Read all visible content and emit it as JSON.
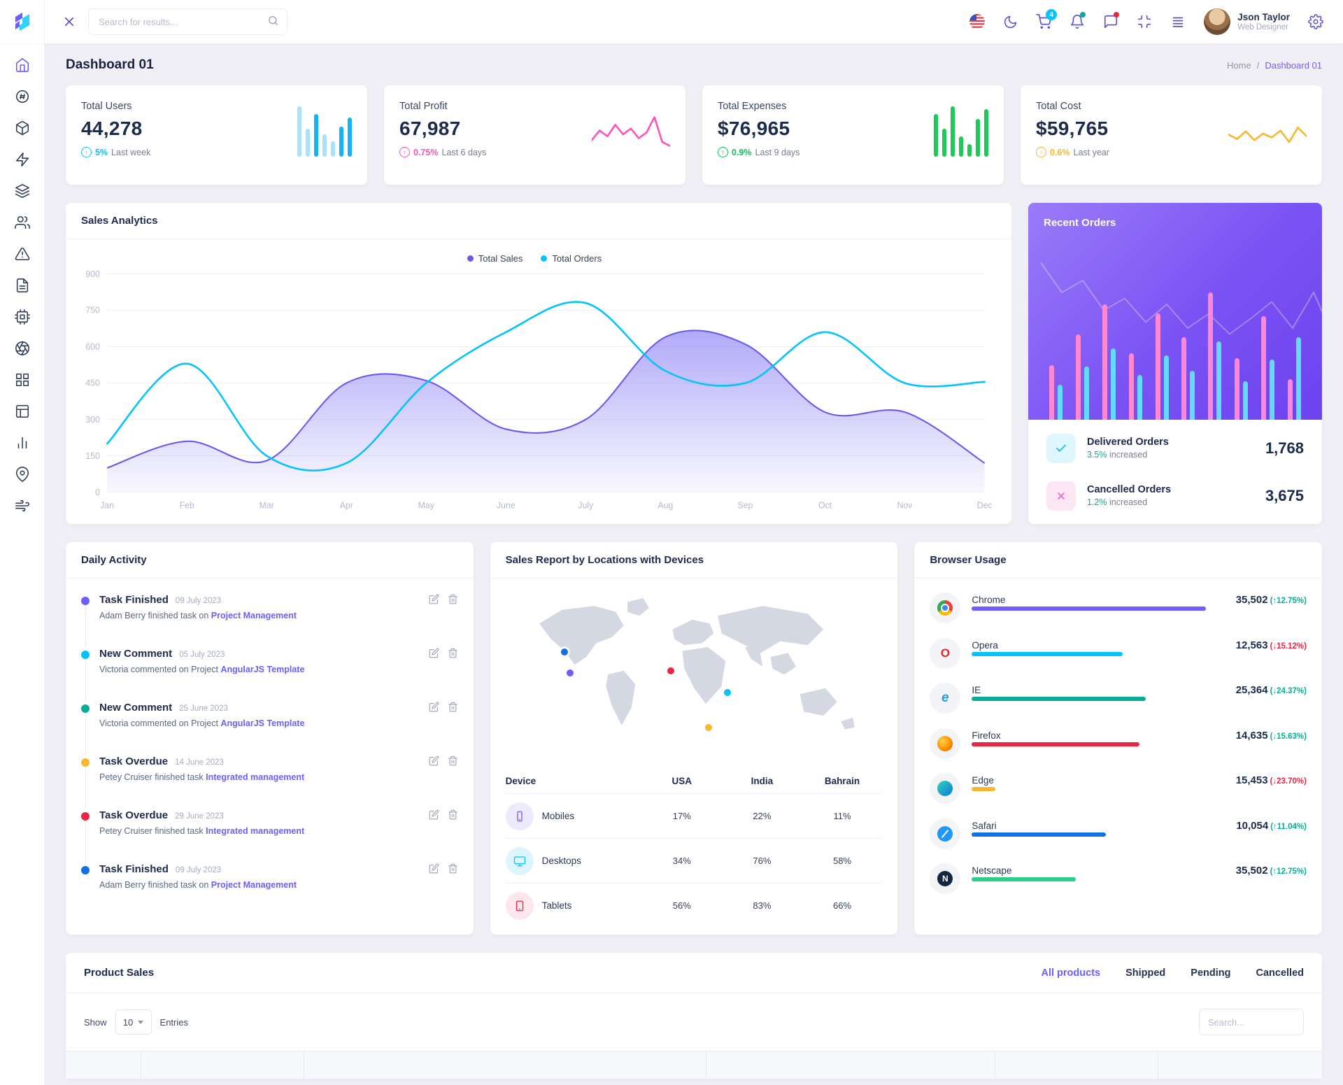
{
  "topbar": {
    "search_placeholder": "Search for results...",
    "cart_badge": "4",
    "user": {
      "name": "Json Taylor",
      "role": "Web Designer"
    }
  },
  "page": {
    "title": "Dashboard 01",
    "breadcrumb_home": "Home",
    "breadcrumb_sep": "/",
    "breadcrumb_current": "Dashboard 01"
  },
  "stats": [
    {
      "label": "Total Users",
      "value": "44,278",
      "delta": "5%",
      "period": "Last week",
      "color": "#05c3fb"
    },
    {
      "label": "Total Profit",
      "value": "67,987",
      "delta": "0.75%",
      "period": "Last 6 days",
      "color": "#fe53bb"
    },
    {
      "label": "Total Expenses",
      "value": "$76,965",
      "delta": "0.9%",
      "period": "Last 9 days",
      "color": "#0bc25d"
    },
    {
      "label": "Total Cost",
      "value": "$59,765",
      "delta": "0.6%",
      "period": "Last year",
      "color": "#f7b731"
    }
  ],
  "sales_analytics": {
    "title": "Sales Analytics"
  },
  "recent_orders": {
    "title": "Recent Orders",
    "items": [
      {
        "label": "Delivered Orders",
        "sub_pct": "3.5%",
        "sub_text": "increased",
        "value": "1,768"
      },
      {
        "label": "Cancelled Orders",
        "sub_pct": "1.2%",
        "sub_text": "increased",
        "value": "3,675"
      }
    ]
  },
  "daily_activity": {
    "title": "Daily Activity",
    "items": [
      {
        "title": "Task Finished",
        "date": "09 July 2023",
        "desc": "Adam Berry finished task on",
        "link": "Project Management",
        "color": "#6c5ffc"
      },
      {
        "title": "New Comment",
        "date": "05 July 2023",
        "desc": "Victoria commented on Project",
        "link": "AngularJS Template",
        "color": "#05c3fb"
      },
      {
        "title": "New Comment",
        "date": "25 June 2023",
        "desc": "Victoria commented on Project",
        "link": "AngularJS Template",
        "color": "#09ad95"
      },
      {
        "title": "Task Overdue",
        "date": "14 June 2023",
        "desc": "Petey Cruiser finished task",
        "link": "Integrated management",
        "color": "#f7b731"
      },
      {
        "title": "Task Overdue",
        "date": "29 June 2023",
        "desc": "Petey Cruiser finished task",
        "link": "Integrated management",
        "color": "#e82646"
      },
      {
        "title": "Task Finished",
        "date": "09 July 2023",
        "desc": "Adam Berry finished task on",
        "link": "Project Management",
        "color": "#1170e4"
      }
    ]
  },
  "sales_report": {
    "title": "Sales Report by Locations with Devices",
    "headers": [
      "Device",
      "USA",
      "India",
      "Bahrain"
    ],
    "rows": [
      {
        "device": "Mobiles",
        "usa": "17%",
        "india": "22%",
        "bahrain": "11%"
      },
      {
        "device": "Desktops",
        "usa": "34%",
        "india": "76%",
        "bahrain": "58%"
      },
      {
        "device": "Tablets",
        "usa": "56%",
        "india": "83%",
        "bahrain": "66%"
      }
    ],
    "map_points": [
      {
        "x": "15%",
        "y": "34%",
        "color": "#1170e4"
      },
      {
        "x": "16.5%",
        "y": "46%",
        "color": "#6c5ffc"
      },
      {
        "x": "43%",
        "y": "45%",
        "color": "#e82646"
      },
      {
        "x": "58%",
        "y": "57%",
        "color": "#05c3fb"
      },
      {
        "x": "53%",
        "y": "77%",
        "color": "#f7b731"
      }
    ]
  },
  "browser_usage": {
    "title": "Browser Usage",
    "rows": [
      {
        "name": "Chrome",
        "value": "35,502",
        "change": "(↑12.75%)",
        "change_color": "#09ad95",
        "bar_color": "#6c5ffc",
        "bar_pct": "70%"
      },
      {
        "name": "Opera",
        "value": "12,563",
        "change": "(↓15.12%)",
        "change_color": "#e82646",
        "bar_color": "#05c3fb",
        "bar_pct": "45%"
      },
      {
        "name": "IE",
        "value": "25,364",
        "change": "(↓24.37%)",
        "change_color": "#09ad95",
        "bar_color": "#09ad95",
        "bar_pct": "52%"
      },
      {
        "name": "Firefox",
        "value": "14,635",
        "change": "(↓15.63%)",
        "change_color": "#09ad95",
        "bar_color": "#e82646",
        "bar_pct": "50%"
      },
      {
        "name": "Edge",
        "value": "15,453",
        "change": "(↓23.70%)",
        "change_color": "#e82646",
        "bar_color": "#f7b731",
        "bar_pct": "7%"
      },
      {
        "name": "Safari",
        "value": "10,054",
        "change": "(↑11.04%)",
        "change_color": "#09ad95",
        "bar_color": "#1170e4",
        "bar_pct": "40%"
      },
      {
        "name": "Netscape",
        "value": "35,502",
        "change": "(↑12.75%)",
        "change_color": "#09ad95",
        "bar_color": "#2dce89",
        "bar_pct": "31%"
      }
    ]
  },
  "product_sales": {
    "title": "Product Sales",
    "tabs": [
      "All products",
      "Shipped",
      "Pending",
      "Cancelled"
    ],
    "active_tab": "All products",
    "show_label": "Show",
    "entries_value": "10",
    "entries_label": "Entries",
    "search_placeholder": "Search..."
  },
  "chart_data": [
    {
      "id": "sales-analytics",
      "type": "area",
      "title": "Sales Analytics",
      "categories": [
        "Jan",
        "Feb",
        "Mar",
        "Apr",
        "May",
        "June",
        "July",
        "Aug",
        "Sep",
        "Oct",
        "Nov",
        "Dec"
      ],
      "ylim": [
        0,
        900
      ],
      "ytick": 150,
      "grid": true,
      "legend_position": "top",
      "series": [
        {
          "name": "Total Sales",
          "type": "area",
          "color": "#6a5ae8",
          "values": [
            100,
            210,
            130,
            450,
            460,
            260,
            300,
            640,
            610,
            330,
            330,
            120
          ]
        },
        {
          "name": "Total Orders",
          "type": "line",
          "color": "#05c3fb",
          "values": [
            200,
            530,
            150,
            120,
            450,
            660,
            780,
            500,
            450,
            660,
            450,
            455
          ]
        }
      ]
    },
    {
      "id": "users-spark",
      "type": "bar",
      "values": [
        100,
        55,
        85,
        45,
        30,
        60,
        78
      ],
      "colors": [
        "#a8e1fb",
        "#a8e1fb",
        "#12b4f3",
        "#a8e1fb",
        "#a8e1fb",
        "#12b4f3",
        "#12b4f3"
      ]
    },
    {
      "id": "profit-spark",
      "type": "line",
      "color": "#fe53bb",
      "values": [
        35,
        60,
        45,
        75,
        50,
        65,
        40,
        55,
        95,
        30,
        20
      ]
    },
    {
      "id": "expenses-spark",
      "type": "bar",
      "values": [
        85,
        55,
        100,
        40,
        25,
        75,
        95
      ],
      "colors": [
        "#1ec957",
        "#1ec957",
        "#1ec957",
        "#1ec957",
        "#1ec957",
        "#1ec957",
        "#1ec957"
      ]
    },
    {
      "id": "cost-spark",
      "type": "line",
      "color": "#f7b731",
      "values": [
        50,
        38,
        58,
        35,
        52,
        42,
        60,
        30,
        68,
        45
      ]
    },
    {
      "id": "recent-orders-bars",
      "type": "bar",
      "series": [
        {
          "name": "sales",
          "color": "#ff87d3",
          "values": [
            78,
            122,
            165,
            95,
            152,
            118,
            182,
            88,
            148,
            58
          ]
        },
        {
          "name": "orders",
          "color": "#63dbfa",
          "values": [
            50,
            76,
            102,
            64,
            92,
            70,
            112,
            55,
            86,
            118
          ]
        }
      ]
    },
    {
      "id": "recent-orders-line",
      "type": "line",
      "color": "#ffffff",
      "values": [
        85,
        60,
        70,
        45,
        55,
        35,
        50,
        30,
        42,
        25,
        38,
        52,
        30,
        60,
        20
      ]
    }
  ]
}
